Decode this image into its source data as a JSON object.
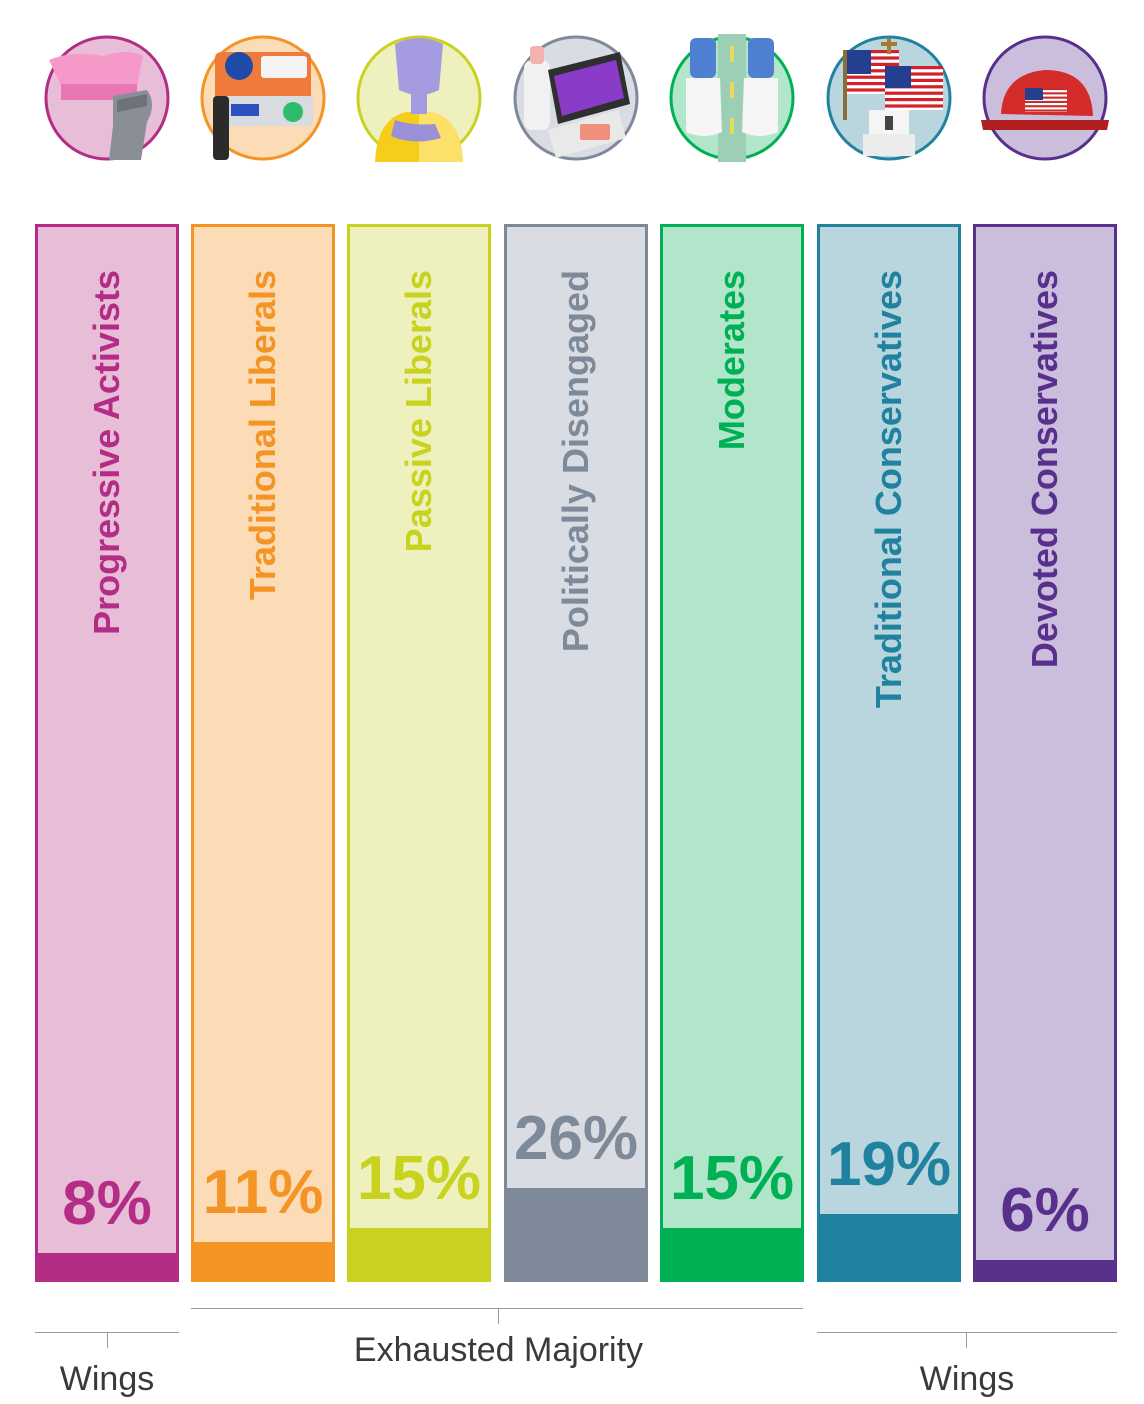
{
  "chart_data": {
    "type": "bar",
    "categories": [
      "Progressive Activists",
      "Traditional Liberals",
      "Passive Liberals",
      "Politically Disengaged",
      "Moderates",
      "Traditional Conservatives",
      "Devoted Conservatives"
    ],
    "values": [
      8,
      11,
      15,
      26,
      15,
      19,
      6
    ],
    "value_suffix": "%",
    "ylim": [
      0,
      100
    ],
    "groups": [
      {
        "label": "Wings",
        "categories": [
          "Progressive Activists"
        ]
      },
      {
        "label": "Exhausted Majority",
        "categories": [
          "Traditional Liberals",
          "Passive Liberals",
          "Politically Disengaged",
          "Moderates"
        ]
      },
      {
        "label": "Wings",
        "categories": [
          "Traditional Conservatives",
          "Devoted Conservatives"
        ]
      }
    ],
    "colors": [
      {
        "main": "#b32d87",
        "light": "#e8bdd8"
      },
      {
        "main": "#f39424",
        "light": "#fbdcb7"
      },
      {
        "main": "#c9d21f",
        "light": "#eef1bd"
      },
      {
        "main": "#7e8a9a",
        "light": "#d9dde3"
      },
      {
        "main": "#00b054",
        "light": "#b1e6cb"
      },
      {
        "main": "#21829f",
        "light": "#b9d6df"
      },
      {
        "main": "#58308c",
        "light": "#cbbedd"
      }
    ],
    "icons": [
      "pink-hat-raised-fist-icon",
      "car-bumper-stickers-icon",
      "thinking-person-icon",
      "phone-bills-icon",
      "walking-feet-road-icon",
      "flag-church-icon",
      "red-cap-flag-icon"
    ]
  },
  "labels": {
    "pct": [
      "8%",
      "11%",
      "15%",
      "26%",
      "15%",
      "19%",
      "6%"
    ],
    "group_wings_left": "Wings",
    "group_majority": "Exhausted Majority",
    "group_wings_right": "Wings"
  }
}
